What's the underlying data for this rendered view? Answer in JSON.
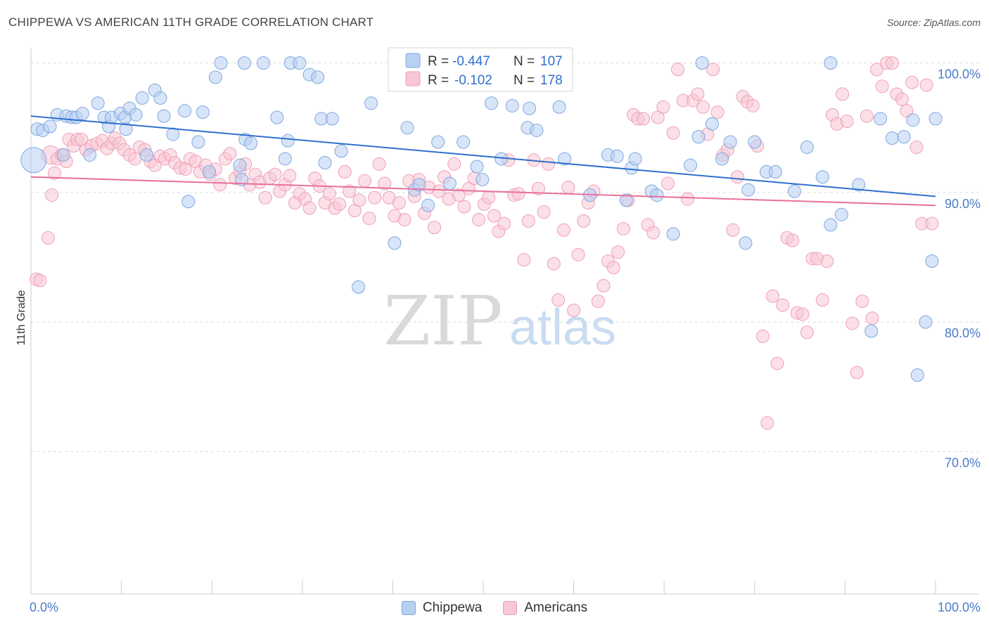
{
  "title": "CHIPPEWA VS AMERICAN 11TH GRADE CORRELATION CHART",
  "source": "Source: ZipAtlas.com",
  "watermark": {
    "zip": "ZIP",
    "atlas": "atlas"
  },
  "colors": {
    "blue_fill": "#b8d0f2",
    "blue_stroke": "#7ea7e0",
    "blue_line": "#2f6fce",
    "pink_fill": "#f8c6d4",
    "pink_stroke": "#eea0b8",
    "pink_line": "#e8709a",
    "tick_label": "#4a7cc9"
  },
  "legend": {
    "rows": [
      {
        "r_label": "R = ",
        "r_value": "-0.447",
        "n_label": "N = ",
        "n_value": "107"
      },
      {
        "r_label": "R = ",
        "r_value": "-0.102",
        "n_label": "N = ",
        "n_value": "178"
      }
    ]
  },
  "bottom_legend": [
    "Chippewa",
    "Americans"
  ],
  "chart_data": {
    "type": "scatter",
    "title": "CHIPPEWA VS AMERICAN 11TH GRADE CORRELATION CHART",
    "xlabel": "",
    "ylabel": "11th Grade",
    "xlim": [
      0,
      100
    ],
    "ylim": [
      59,
      101.5
    ],
    "x_tick_labels": [
      "0.0%",
      "100.0%"
    ],
    "y_ticks": [
      {
        "value": 100,
        "label": "100.0%"
      },
      {
        "value": 90,
        "label": "90.0%"
      },
      {
        "value": 80,
        "label": "80.0%"
      },
      {
        "value": 70,
        "label": "70.0%"
      }
    ],
    "grid": true,
    "legend_position": "top-center",
    "series": [
      {
        "name": "Chippewa",
        "r": -0.447,
        "n": 107,
        "trend": [
          [
            0,
            95.9
          ],
          [
            100,
            89.7
          ]
        ],
        "points": [
          [
            0.3,
            92.5,
            "L"
          ],
          [
            0.7,
            94.9
          ],
          [
            1.3,
            94.8
          ],
          [
            2.1,
            95.1
          ],
          [
            2.9,
            96.0
          ],
          [
            3.6,
            92.9
          ],
          [
            3.9,
            95.9
          ],
          [
            4.5,
            95.8
          ],
          [
            5.0,
            95.8
          ],
          [
            5.7,
            96.1
          ],
          [
            6.5,
            92.9
          ],
          [
            7.4,
            96.9
          ],
          [
            8.1,
            95.8
          ],
          [
            8.6,
            95.1
          ],
          [
            8.9,
            95.8
          ],
          [
            9.9,
            96.1
          ],
          [
            10.4,
            95.8
          ],
          [
            10.5,
            94.9
          ],
          [
            10.9,
            96.5
          ],
          [
            11.6,
            96.0
          ],
          [
            12.3,
            97.3
          ],
          [
            12.8,
            92.9
          ],
          [
            13.7,
            97.9
          ],
          [
            14.3,
            97.3
          ],
          [
            14.7,
            95.9
          ],
          [
            15.7,
            94.5
          ],
          [
            17.0,
            96.3
          ],
          [
            17.4,
            89.3
          ],
          [
            18.5,
            93.9
          ],
          [
            19.0,
            96.2
          ],
          [
            19.7,
            91.6
          ],
          [
            20.4,
            98.9
          ],
          [
            21.0,
            100.0
          ],
          [
            23.1,
            92.1
          ],
          [
            23.3,
            91.0
          ],
          [
            23.6,
            100.0
          ],
          [
            23.7,
            94.1
          ],
          [
            24.3,
            93.8
          ],
          [
            25.7,
            100.0
          ],
          [
            27.2,
            95.8
          ],
          [
            28.1,
            92.6
          ],
          [
            28.4,
            94.0
          ],
          [
            28.7,
            100.0
          ],
          [
            29.7,
            100.0
          ],
          [
            30.8,
            99.1
          ],
          [
            31.7,
            98.9
          ],
          [
            32.1,
            95.7
          ],
          [
            32.5,
            92.3
          ],
          [
            33.3,
            95.7
          ],
          [
            34.3,
            93.2
          ],
          [
            36.2,
            82.7
          ],
          [
            37.6,
            96.9
          ],
          [
            40.2,
            86.1
          ],
          [
            41.6,
            95.0
          ],
          [
            42.4,
            90.2
          ],
          [
            42.9,
            90.6
          ],
          [
            43.9,
            89.0
          ],
          [
            45.0,
            93.9
          ],
          [
            46.3,
            90.7
          ],
          [
            47.8,
            93.9
          ],
          [
            49.3,
            92.0
          ],
          [
            49.9,
            91.0
          ],
          [
            50.9,
            96.9
          ],
          [
            52.0,
            92.6
          ],
          [
            53.2,
            96.7
          ],
          [
            54.9,
            95.0
          ],
          [
            55.1,
            96.5
          ],
          [
            55.9,
            94.8
          ],
          [
            58.4,
            96.6
          ],
          [
            59.0,
            92.6
          ],
          [
            61.8,
            89.8
          ],
          [
            63.8,
            92.9
          ],
          [
            64.8,
            92.8
          ],
          [
            65.8,
            89.4
          ],
          [
            66.4,
            91.9
          ],
          [
            66.8,
            92.6
          ],
          [
            68.6,
            90.1
          ],
          [
            69.2,
            89.8
          ],
          [
            71.0,
            86.8
          ],
          [
            72.9,
            92.1
          ],
          [
            73.8,
            94.3
          ],
          [
            74.2,
            100.0
          ],
          [
            75.3,
            95.3
          ],
          [
            76.4,
            92.6
          ],
          [
            77.3,
            93.9
          ],
          [
            79.0,
            86.1
          ],
          [
            79.3,
            90.2
          ],
          [
            80.0,
            93.9
          ],
          [
            81.3,
            91.6
          ],
          [
            82.3,
            91.6
          ],
          [
            84.4,
            90.1
          ],
          [
            85.8,
            93.5
          ],
          [
            87.5,
            91.2
          ],
          [
            88.4,
            87.5
          ],
          [
            88.4,
            100.0
          ],
          [
            89.6,
            88.3
          ],
          [
            91.5,
            90.6
          ],
          [
            92.9,
            79.3
          ],
          [
            93.9,
            95.7
          ],
          [
            95.2,
            94.2
          ],
          [
            96.5,
            94.3
          ],
          [
            97.5,
            95.6
          ],
          [
            98.0,
            75.9
          ],
          [
            98.9,
            80.0
          ],
          [
            99.6,
            84.7
          ],
          [
            100.0,
            95.7
          ]
        ]
      },
      {
        "name": "Americans",
        "r": -0.102,
        "n": 178,
        "trend": [
          [
            0,
            91.2
          ],
          [
            100,
            89.0
          ]
        ],
        "points": [
          [
            0.6,
            83.3
          ],
          [
            1.0,
            83.2
          ],
          [
            1.9,
            86.5
          ],
          [
            2.2,
            92.9,
            "M"
          ],
          [
            2.3,
            89.8
          ],
          [
            2.6,
            91.5
          ],
          [
            2.9,
            92.6
          ],
          [
            3.4,
            92.9
          ],
          [
            3.9,
            92.4
          ],
          [
            4.2,
            94.1
          ],
          [
            4.7,
            93.6
          ],
          [
            5.1,
            94.1
          ],
          [
            5.6,
            94.1
          ],
          [
            6.1,
            93.3
          ],
          [
            6.7,
            93.6
          ],
          [
            7.3,
            93.8
          ],
          [
            7.9,
            94.0
          ],
          [
            8.4,
            93.4
          ],
          [
            8.9,
            93.8
          ],
          [
            9.3,
            94.2
          ],
          [
            9.8,
            93.8
          ],
          [
            10.3,
            93.3
          ],
          [
            10.9,
            92.9
          ],
          [
            11.5,
            92.6
          ],
          [
            12.0,
            93.5
          ],
          [
            12.6,
            93.3
          ],
          [
            13.2,
            92.4
          ],
          [
            13.7,
            92.1
          ],
          [
            14.3,
            92.8
          ],
          [
            14.8,
            92.6
          ],
          [
            15.4,
            92.9
          ],
          [
            15.9,
            92.3
          ],
          [
            16.5,
            91.9
          ],
          [
            17.1,
            91.8
          ],
          [
            17.6,
            92.6
          ],
          [
            18.2,
            92.4
          ],
          [
            18.7,
            91.6
          ],
          [
            19.3,
            92.1
          ],
          [
            19.8,
            91.4
          ],
          [
            20.4,
            91.8
          ],
          [
            20.9,
            90.6
          ],
          [
            21.5,
            92.6
          ],
          [
            22.0,
            93.0
          ],
          [
            22.6,
            91.1
          ],
          [
            23.1,
            91.6
          ],
          [
            23.7,
            92.2
          ],
          [
            24.2,
            90.6
          ],
          [
            24.8,
            91.4
          ],
          [
            25.3,
            90.8
          ],
          [
            25.9,
            89.6
          ],
          [
            26.4,
            91.1
          ],
          [
            27.0,
            91.4
          ],
          [
            27.5,
            90.1
          ],
          [
            28.1,
            90.6
          ],
          [
            28.6,
            91.3
          ],
          [
            29.2,
            89.2
          ],
          [
            29.7,
            89.9
          ],
          [
            30.3,
            89.5
          ],
          [
            30.8,
            88.8
          ],
          [
            31.4,
            91.1
          ],
          [
            31.9,
            90.5
          ],
          [
            32.5,
            89.2
          ],
          [
            33.0,
            89.9
          ],
          [
            33.6,
            88.8
          ],
          [
            34.1,
            89.1
          ],
          [
            34.7,
            91.6
          ],
          [
            35.2,
            90.1
          ],
          [
            35.8,
            88.6
          ],
          [
            36.3,
            89.4
          ],
          [
            36.9,
            90.9
          ],
          [
            37.4,
            88.0
          ],
          [
            38.0,
            89.6
          ],
          [
            38.5,
            92.2
          ],
          [
            39.1,
            90.7
          ],
          [
            39.6,
            89.6
          ],
          [
            40.2,
            88.2
          ],
          [
            40.7,
            89.2
          ],
          [
            41.3,
            87.9
          ],
          [
            41.8,
            90.9
          ],
          [
            42.4,
            89.7
          ],
          [
            42.9,
            91.0
          ],
          [
            43.5,
            88.4
          ],
          [
            44.0,
            90.4
          ],
          [
            44.6,
            87.3
          ],
          [
            45.1,
            90.1
          ],
          [
            45.7,
            91.2
          ],
          [
            46.2,
            89.5
          ],
          [
            46.8,
            92.2
          ],
          [
            47.3,
            89.8
          ],
          [
            47.9,
            88.9
          ],
          [
            48.4,
            90.3
          ],
          [
            49.0,
            91.1
          ],
          [
            49.5,
            87.9
          ],
          [
            50.1,
            89.1
          ],
          [
            50.6,
            89.6
          ],
          [
            51.2,
            88.2
          ],
          [
            51.7,
            87.0
          ],
          [
            52.3,
            87.6
          ],
          [
            52.8,
            92.5
          ],
          [
            53.4,
            89.8
          ],
          [
            53.9,
            89.9
          ],
          [
            54.5,
            84.8
          ],
          [
            55.0,
            87.8
          ],
          [
            55.6,
            92.5
          ],
          [
            56.1,
            90.3
          ],
          [
            56.7,
            88.5
          ],
          [
            57.2,
            92.2
          ],
          [
            57.8,
            84.5
          ],
          [
            58.3,
            81.7
          ],
          [
            58.9,
            87.1
          ],
          [
            59.4,
            90.4
          ],
          [
            60.0,
            80.9
          ],
          [
            60.5,
            85.2
          ],
          [
            61.1,
            87.8
          ],
          [
            61.6,
            89.2
          ],
          [
            62.2,
            90.1
          ],
          [
            62.7,
            81.6
          ],
          [
            63.3,
            82.8
          ],
          [
            63.8,
            84.7
          ],
          [
            64.4,
            84.2
          ],
          [
            64.9,
            85.4
          ],
          [
            65.5,
            87.2
          ],
          [
            66.0,
            89.4
          ],
          [
            66.6,
            96.0
          ],
          [
            67.1,
            95.7
          ],
          [
            67.7,
            95.7
          ],
          [
            68.2,
            87.5
          ],
          [
            68.8,
            86.9
          ],
          [
            69.3,
            95.8
          ],
          [
            69.9,
            96.6
          ],
          [
            70.4,
            90.7
          ],
          [
            71.0,
            94.6
          ],
          [
            71.5,
            99.5
          ],
          [
            72.1,
            97.1
          ],
          [
            72.6,
            89.5
          ],
          [
            73.2,
            97.1
          ],
          [
            73.7,
            97.6
          ],
          [
            74.3,
            96.6
          ],
          [
            74.8,
            94.5
          ],
          [
            75.4,
            99.5
          ],
          [
            75.9,
            96.2
          ],
          [
            76.5,
            92.9
          ],
          [
            77.0,
            93.3
          ],
          [
            77.6,
            87.1
          ],
          [
            78.1,
            91.2
          ],
          [
            78.7,
            97.4
          ],
          [
            79.2,
            97.0
          ],
          [
            79.8,
            96.7
          ],
          [
            80.3,
            93.6
          ],
          [
            80.9,
            78.9
          ],
          [
            81.4,
            72.2
          ],
          [
            82.0,
            82.0
          ],
          [
            82.5,
            76.8
          ],
          [
            83.1,
            81.3
          ],
          [
            83.6,
            86.5
          ],
          [
            84.2,
            86.3
          ],
          [
            84.7,
            80.7
          ],
          [
            85.3,
            80.6
          ],
          [
            85.8,
            79.2
          ],
          [
            86.4,
            84.9
          ],
          [
            86.9,
            84.9
          ],
          [
            87.5,
            81.7
          ],
          [
            88.0,
            84.7
          ],
          [
            88.6,
            96.0
          ],
          [
            89.1,
            95.3
          ],
          [
            89.7,
            97.6
          ],
          [
            90.2,
            95.5
          ],
          [
            90.8,
            79.9
          ],
          [
            91.3,
            76.1
          ],
          [
            91.9,
            81.6
          ],
          [
            92.4,
            95.9
          ],
          [
            93.0,
            80.3
          ],
          [
            93.5,
            99.5
          ],
          [
            94.1,
            98.2
          ],
          [
            94.6,
            100.0
          ],
          [
            95.2,
            100.0
          ],
          [
            95.7,
            97.6
          ],
          [
            96.3,
            97.2
          ],
          [
            96.8,
            96.3
          ],
          [
            97.4,
            98.5
          ],
          [
            97.9,
            93.5
          ],
          [
            98.5,
            87.6
          ],
          [
            99.0,
            98.3
          ],
          [
            99.6,
            87.6
          ]
        ]
      }
    ]
  }
}
